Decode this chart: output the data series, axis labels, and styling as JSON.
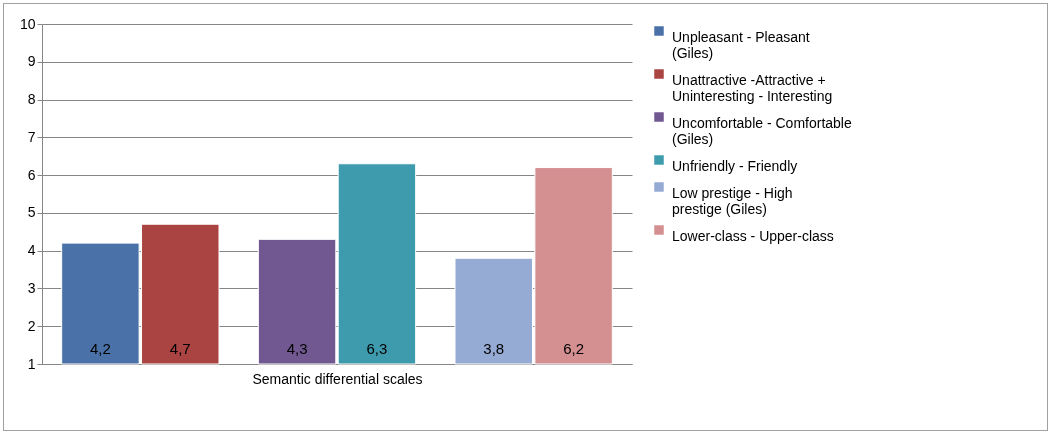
{
  "chart_data": {
    "type": "bar",
    "xlabel": "Semantic differential scales",
    "categories": [
      null,
      null,
      null
    ],
    "series": [
      {
        "name": "Unpleasant - Pleasant (Giles)",
        "color": "#4a72a8",
        "values": [
          4.2,
          null,
          null
        ],
        "value_labels": [
          "4,2",
          null,
          null
        ]
      },
      {
        "name": "Unattractive -Attractive + Uninteresting - Interesting",
        "color": "#a94442",
        "values": [
          4.7,
          null,
          null
        ],
        "value_labels": [
          "4,7",
          null,
          null
        ]
      },
      {
        "name": "Uncomfortable - Comfortable (Giles)",
        "color": "#715891",
        "values": [
          null,
          4.3,
          null
        ],
        "value_labels": [
          null,
          "4,3",
          null
        ]
      },
      {
        "name": "Unfriendly - Friendly",
        "color": "#3e9bae",
        "values": [
          null,
          6.3,
          null
        ],
        "value_labels": [
          null,
          "6,3",
          null
        ]
      },
      {
        "name": "Low prestige - High prestige (Giles)",
        "color": "#95abd4",
        "values": [
          null,
          null,
          3.8
        ],
        "value_labels": [
          null,
          null,
          "3,8"
        ]
      },
      {
        "name": "Lower-class - Upper-class",
        "color": "#d49091",
        "values": [
          null,
          null,
          6.2
        ],
        "value_labels": [
          null,
          null,
          "6,2"
        ]
      }
    ],
    "ylim": [
      1,
      10
    ],
    "yticks": [
      1,
      2,
      3,
      4,
      5,
      6,
      7,
      8,
      9,
      10
    ],
    "grid": "y",
    "legend": "right"
  }
}
